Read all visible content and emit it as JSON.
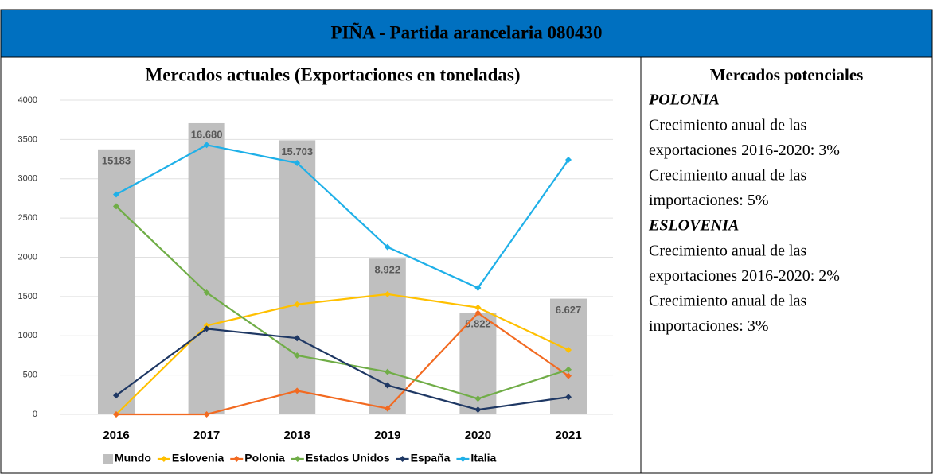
{
  "header": {
    "title": "PIÑA - Partida arancelaria 080430"
  },
  "chart_data": {
    "type": "bar-line",
    "title": "Mercados actuales (Exportaciones en toneladas)",
    "categories": [
      "2016",
      "2017",
      "2018",
      "2019",
      "2020",
      "2021"
    ],
    "ylim": [
      0,
      4000
    ],
    "yticks": [
      0,
      500,
      1000,
      1500,
      2000,
      2500,
      3000,
      3500,
      4000
    ],
    "y2lim": [
      0,
      18000
    ],
    "grid": true,
    "series": [
      {
        "name": "Mundo",
        "type": "bar",
        "axis": "y2",
        "color": "#bfbfbf",
        "values": [
          15183,
          16680,
          15703,
          8922,
          5822,
          6627
        ],
        "value_labels": [
          "15183",
          "16.680",
          "15.703",
          "8.922",
          "5.822",
          "6.627"
        ]
      },
      {
        "name": "Eslovenia",
        "type": "line",
        "color": "#ffc000",
        "values": [
          0,
          1130,
          1400,
          1530,
          1360,
          820
        ]
      },
      {
        "name": "Polonia",
        "type": "line",
        "color": "#f26a21",
        "values": [
          0,
          0,
          300,
          75,
          1290,
          490
        ]
      },
      {
        "name": "Estados Unidos",
        "type": "line",
        "color": "#70ad47",
        "values": [
          2650,
          1550,
          750,
          540,
          200,
          570
        ]
      },
      {
        "name": "España",
        "type": "line",
        "color": "#1f3864",
        "values": [
          240,
          1090,
          970,
          370,
          60,
          220
        ]
      },
      {
        "name": "Italia",
        "type": "line",
        "color": "#1fb0e8",
        "values": [
          2800,
          3430,
          3200,
          2130,
          1610,
          3240
        ]
      }
    ]
  },
  "right": {
    "title": "Mercados potenciales",
    "sections": [
      {
        "heading": "POLONIA",
        "lines": [
          "Crecimiento anual de las",
          "exportaciones 2016-2020: 3%",
          "Crecimiento anual de las",
          "importaciones: 5%"
        ]
      },
      {
        "heading": "ESLOVENIA",
        "lines": [
          "Crecimiento anual de las",
          "exportaciones 2016-2020: 2%",
          "Crecimiento anual de las",
          "importaciones: 3%"
        ]
      }
    ]
  }
}
